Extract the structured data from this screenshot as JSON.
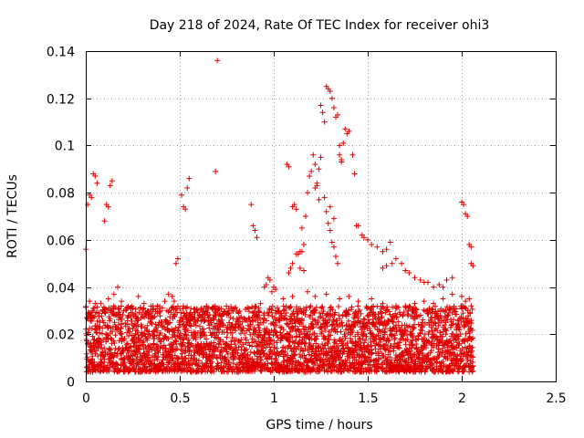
{
  "chart_data": {
    "type": "scatter",
    "title": "Day 218 of 2024, Rate Of TEC Index for receiver ohi3",
    "xlabel": "GPS time / hours",
    "ylabel": "ROTI / TECUs",
    "xlim": [
      0,
      2.5
    ],
    "ylim": [
      0,
      0.14
    ],
    "x_ticks": [
      0,
      0.5,
      1,
      1.5,
      2,
      2.5
    ],
    "x_tick_labels": [
      "0",
      "0.5",
      "1",
      "1.5",
      "2",
      "2.5"
    ],
    "y_ticks": [
      0,
      0.02,
      0.04,
      0.06,
      0.08,
      0.1,
      0.12,
      0.14
    ],
    "y_tick_labels": [
      "0",
      "0.02",
      "0.04",
      "0.06",
      "0.08",
      "0.1",
      "0.12",
      "0.14"
    ],
    "grid": true,
    "marker": "+",
    "color": "#e00000",
    "series": [
      {
        "name": "ohi3",
        "points": [
          [
            0.0,
            0.056
          ],
          [
            0.01,
            0.075
          ],
          [
            0.02,
            0.079
          ],
          [
            0.03,
            0.078
          ],
          [
            0.04,
            0.088
          ],
          [
            0.05,
            0.087
          ],
          [
            0.06,
            0.084
          ],
          [
            0.1,
            0.068
          ],
          [
            0.11,
            0.075
          ],
          [
            0.12,
            0.074
          ],
          [
            0.13,
            0.083
          ],
          [
            0.14,
            0.085
          ],
          [
            0.48,
            0.05
          ],
          [
            0.49,
            0.052
          ],
          [
            0.51,
            0.079
          ],
          [
            0.52,
            0.074
          ],
          [
            0.53,
            0.073
          ],
          [
            0.54,
            0.082
          ],
          [
            0.55,
            0.086
          ],
          [
            0.69,
            0.089
          ],
          [
            0.7,
            0.136
          ],
          [
            0.88,
            0.075
          ],
          [
            0.89,
            0.066
          ],
          [
            0.9,
            0.064
          ],
          [
            0.91,
            0.061
          ],
          [
            1.07,
            0.092
          ],
          [
            1.08,
            0.091
          ],
          [
            1.1,
            0.074
          ],
          [
            1.11,
            0.075
          ],
          [
            1.12,
            0.073
          ],
          [
            1.15,
            0.065
          ],
          [
            1.17,
            0.07
          ],
          [
            1.18,
            0.08
          ],
          [
            1.19,
            0.087
          ],
          [
            1.2,
            0.089
          ],
          [
            1.21,
            0.096
          ],
          [
            1.22,
            0.092
          ],
          [
            1.23,
            0.083
          ],
          [
            1.24,
            0.077
          ],
          [
            1.25,
            0.117
          ],
          [
            1.26,
            0.114
          ],
          [
            1.27,
            0.11
          ],
          [
            1.28,
            0.125
          ],
          [
            1.29,
            0.124
          ],
          [
            1.3,
            0.123
          ],
          [
            1.31,
            0.12
          ],
          [
            1.32,
            0.116
          ],
          [
            1.33,
            0.112
          ],
          [
            1.34,
            0.113
          ],
          [
            1.35,
            0.096
          ],
          [
            1.36,
            0.094
          ],
          [
            1.37,
            0.101
          ],
          [
            1.38,
            0.107
          ],
          [
            1.39,
            0.105
          ],
          [
            1.4,
            0.106
          ],
          [
            1.42,
            0.096
          ],
          [
            1.43,
            0.088
          ],
          [
            1.35,
            0.1
          ],
          [
            1.36,
            0.093
          ],
          [
            1.27,
            0.078
          ],
          [
            1.28,
            0.072
          ],
          [
            1.29,
            0.067
          ],
          [
            1.3,
            0.064
          ],
          [
            1.31,
            0.059
          ],
          [
            1.32,
            0.057
          ],
          [
            1.33,
            0.053
          ],
          [
            1.34,
            0.05
          ],
          [
            1.3,
            0.074
          ],
          [
            1.32,
            0.069
          ],
          [
            1.25,
            0.095
          ],
          [
            1.24,
            0.09
          ],
          [
            1.23,
            0.084
          ],
          [
            1.22,
            0.082
          ],
          [
            1.44,
            0.066
          ],
          [
            1.45,
            0.066
          ],
          [
            1.47,
            0.062
          ],
          [
            1.48,
            0.061
          ],
          [
            1.5,
            0.06
          ],
          [
            1.52,
            0.058
          ],
          [
            1.55,
            0.057
          ],
          [
            1.58,
            0.055
          ],
          [
            1.6,
            0.056
          ],
          [
            1.62,
            0.059
          ],
          [
            1.58,
            0.048
          ],
          [
            1.6,
            0.049
          ],
          [
            1.63,
            0.05
          ],
          [
            1.65,
            0.052
          ],
          [
            1.68,
            0.05
          ],
          [
            1.7,
            0.047
          ],
          [
            1.72,
            0.046
          ],
          [
            1.75,
            0.044
          ],
          [
            1.78,
            0.043
          ],
          [
            1.8,
            0.042
          ],
          [
            1.82,
            0.042
          ],
          [
            1.85,
            0.04
          ],
          [
            1.88,
            0.041
          ],
          [
            1.9,
            0.04
          ],
          [
            1.92,
            0.043
          ],
          [
            1.95,
            0.044
          ],
          [
            2.0,
            0.076
          ],
          [
            2.01,
            0.075
          ],
          [
            2.02,
            0.071
          ],
          [
            2.03,
            0.07
          ],
          [
            2.04,
            0.058
          ],
          [
            2.05,
            0.057
          ],
          [
            2.06,
            0.049
          ],
          [
            2.05,
            0.05
          ],
          [
            1.12,
            0.054
          ],
          [
            1.13,
            0.054
          ],
          [
            1.14,
            0.055
          ],
          [
            1.15,
            0.055
          ],
          [
            1.16,
            0.058
          ],
          [
            1.1,
            0.05
          ],
          [
            1.09,
            0.048
          ],
          [
            1.08,
            0.046
          ],
          [
            1.14,
            0.048
          ],
          [
            1.16,
            0.047
          ],
          [
            1.0,
            0.04
          ],
          [
            0.99,
            0.038
          ],
          [
            1.01,
            0.039
          ],
          [
            0.95,
            0.04
          ],
          [
            0.96,
            0.041
          ],
          [
            0.97,
            0.044
          ],
          [
            0.98,
            0.043
          ],
          [
            0.02,
            0.034
          ],
          [
            0.05,
            0.033
          ],
          [
            0.08,
            0.033
          ],
          [
            0.12,
            0.035
          ],
          [
            0.15,
            0.037
          ],
          [
            0.17,
            0.04
          ],
          [
            0.19,
            0.034
          ],
          [
            0.25,
            0.031
          ],
          [
            0.28,
            0.036
          ],
          [
            0.31,
            0.033
          ],
          [
            0.38,
            0.032
          ],
          [
            0.42,
            0.034
          ],
          [
            0.44,
            0.037
          ],
          [
            0.46,
            0.036
          ],
          [
            0.47,
            0.034
          ],
          [
            0.5,
            0.031
          ],
          [
            0.58,
            0.027
          ],
          [
            0.62,
            0.026
          ],
          [
            0.65,
            0.028
          ],
          [
            0.68,
            0.027
          ],
          [
            0.72,
            0.025
          ],
          [
            0.75,
            0.022
          ],
          [
            0.78,
            0.024
          ],
          [
            0.82,
            0.027
          ],
          [
            0.85,
            0.026
          ],
          [
            0.9,
            0.031
          ],
          [
            0.93,
            0.033
          ],
          [
            1.05,
            0.035
          ],
          [
            1.1,
            0.036
          ],
          [
            1.18,
            0.038
          ],
          [
            1.22,
            0.036
          ],
          [
            1.28,
            0.037
          ],
          [
            1.35,
            0.035
          ],
          [
            1.4,
            0.036
          ],
          [
            1.45,
            0.034
          ],
          [
            1.52,
            0.035
          ],
          [
            1.58,
            0.033
          ],
          [
            1.65,
            0.031
          ],
          [
            1.7,
            0.032
          ],
          [
            1.75,
            0.033
          ],
          [
            1.8,
            0.034
          ],
          [
            1.85,
            0.033
          ],
          [
            1.9,
            0.035
          ],
          [
            1.95,
            0.037
          ],
          [
            2.0,
            0.036
          ],
          [
            2.02,
            0.034
          ],
          [
            2.04,
            0.035
          ],
          [
            2.05,
            0.032
          ]
        ]
      }
    ]
  }
}
